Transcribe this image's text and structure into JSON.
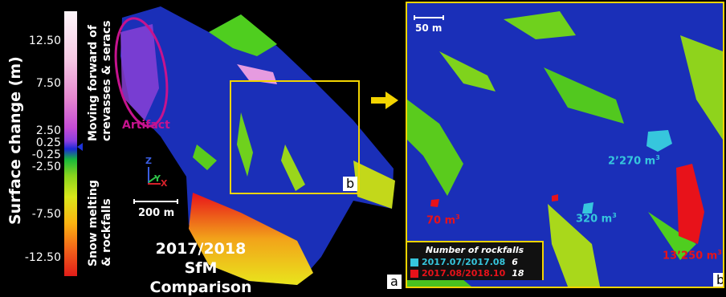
{
  "colorbar": {
    "title": "Surface change (m)",
    "ticks": [
      "12.50",
      "7.50",
      "2.50",
      "0.25",
      "-0.25",
      "-2.50",
      "-7.50",
      "-12.50"
    ],
    "upper_label_line1": "Moving forward of",
    "upper_label_line2": "crevasses & seracs",
    "lower_label_line1": "Snow melting",
    "lower_label_line2": "& rockfalls"
  },
  "left": {
    "artifact_label": "Artifact",
    "axis_z": "Z",
    "axis_x": "X",
    "axis_y": "Y",
    "scale_label": "200 m",
    "title_line1": "2017/2018",
    "title_line2": "SfM Comparison",
    "box_letter": "b",
    "panel_letter": "a"
  },
  "right": {
    "scale_label": "50 m",
    "volumes": [
      {
        "text": "2’270 m",
        "sup": "3",
        "color": "#36c6dd"
      },
      {
        "text": "70 m",
        "sup": "3",
        "color": "#e8121a"
      },
      {
        "text": "320 m",
        "sup": "3",
        "color": "#36c6dd"
      },
      {
        "text": "13’250 m",
        "sup": "3",
        "color": "#e8121a"
      }
    ],
    "legend": {
      "title": "Number of rockfalls",
      "rows": [
        {
          "period": "2017.07/2017.08",
          "count": "6",
          "color": "#36c6dd"
        },
        {
          "period": "2017.08/2018.10",
          "count": "18",
          "color": "#e8121a"
        }
      ]
    },
    "panel_letter": "b"
  },
  "colors": {
    "frame": "#f3d400",
    "artifact": "#c6138e",
    "surface_blue": "#1a2fb8",
    "rockfall_cyan": "#36c6dd",
    "rockfall_red": "#e8121a"
  }
}
